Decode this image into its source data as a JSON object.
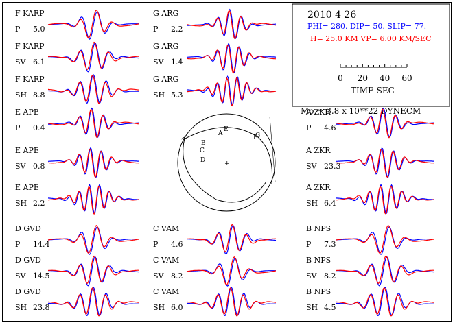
{
  "header": {
    "date": "2010  4 26",
    "mechanism": "PHI= 280. DIP= 50. SLIP=  77.",
    "depth_velocity": "H= 25.0 KM  VP= 6.00 KM/SEC",
    "time_label": "TIME  SEC",
    "ticks": [
      "0",
      "20",
      "40",
      "60"
    ],
    "moment": "Mo =  3.8 x 10**22 DYNECM"
  },
  "colors": {
    "observed": "#0000ff",
    "synthetic": "#ff0000",
    "ink": "#000000"
  },
  "chart_data": {
    "type": "line",
    "title": "Body-wave waveform inversion",
    "xlabel": "TIME SEC",
    "xlim": [
      0,
      60
    ],
    "series_names": [
      "observed (blue)",
      "synthetic (red)"
    ],
    "panels": [
      {
        "station": "F KARP",
        "phase": "P",
        "amp": "5.0",
        "column": 0,
        "row": 0,
        "pattern": 0
      },
      {
        "station": "F KARP",
        "phase": "SV",
        "amp": "6.1",
        "column": 0,
        "row": 1,
        "pattern": 1
      },
      {
        "station": "F KARP",
        "phase": "SH",
        "amp": "8.8",
        "column": 0,
        "row": 2,
        "pattern": 2
      },
      {
        "station": "E APE",
        "phase": "P",
        "amp": "0.4",
        "column": 0,
        "row": 3,
        "pattern": 3
      },
      {
        "station": "E APE",
        "phase": "SV",
        "amp": "0.8",
        "column": 0,
        "row": 4,
        "pattern": 4
      },
      {
        "station": "E APE",
        "phase": "SH",
        "amp": "2.2",
        "column": 0,
        "row": 5,
        "pattern": 5
      },
      {
        "station": "D GVD",
        "phase": "P",
        "amp": "14.4",
        "column": 0,
        "row": 6,
        "pattern": 0
      },
      {
        "station": "D GVD",
        "phase": "SV",
        "amp": "14.5",
        "column": 0,
        "row": 7,
        "pattern": 1
      },
      {
        "station": "D GVD",
        "phase": "SH",
        "amp": "23.8",
        "column": 0,
        "row": 8,
        "pattern": 2
      },
      {
        "station": "G ARG",
        "phase": "P",
        "amp": "2.2",
        "column": 1,
        "row": 0,
        "pattern": 3
      },
      {
        "station": "G ARG",
        "phase": "SV",
        "amp": "1.4",
        "column": 1,
        "row": 1,
        "pattern": 4
      },
      {
        "station": "G ARG",
        "phase": "SH",
        "amp": "5.3",
        "column": 1,
        "row": 2,
        "pattern": 5
      },
      {
        "station": "C VAM",
        "phase": "P",
        "amp": "4.6",
        "column": 1,
        "row": 6,
        "pattern": 1
      },
      {
        "station": "C VAM",
        "phase": "SV",
        "amp": "8.2",
        "column": 1,
        "row": 7,
        "pattern": 0
      },
      {
        "station": "C VAM",
        "phase": "SH",
        "amp": "6.0",
        "column": 1,
        "row": 8,
        "pattern": 2
      },
      {
        "station": "A ZKR",
        "phase": "P",
        "amp": "4.6",
        "column": 2,
        "row": 3,
        "pattern": 3
      },
      {
        "station": "A ZKR",
        "phase": "SV",
        "amp": "23.3",
        "column": 2,
        "row": 4,
        "pattern": 4
      },
      {
        "station": "A ZKR",
        "phase": "SH",
        "amp": "6.4",
        "column": 2,
        "row": 5,
        "pattern": 5
      },
      {
        "station": "B NPS",
        "phase": "P",
        "amp": "7.3",
        "column": 2,
        "row": 6,
        "pattern": 0
      },
      {
        "station": "B NPS",
        "phase": "SV",
        "amp": "8.2",
        "column": 2,
        "row": 7,
        "pattern": 1
      },
      {
        "station": "B NPS",
        "phase": "SH",
        "amp": "4.5",
        "column": 2,
        "row": 8,
        "pattern": 2
      }
    ],
    "beachball": {
      "labels": [
        "A",
        "E",
        "B",
        "C",
        "D",
        "F",
        "G"
      ],
      "center_mark": "+"
    }
  }
}
